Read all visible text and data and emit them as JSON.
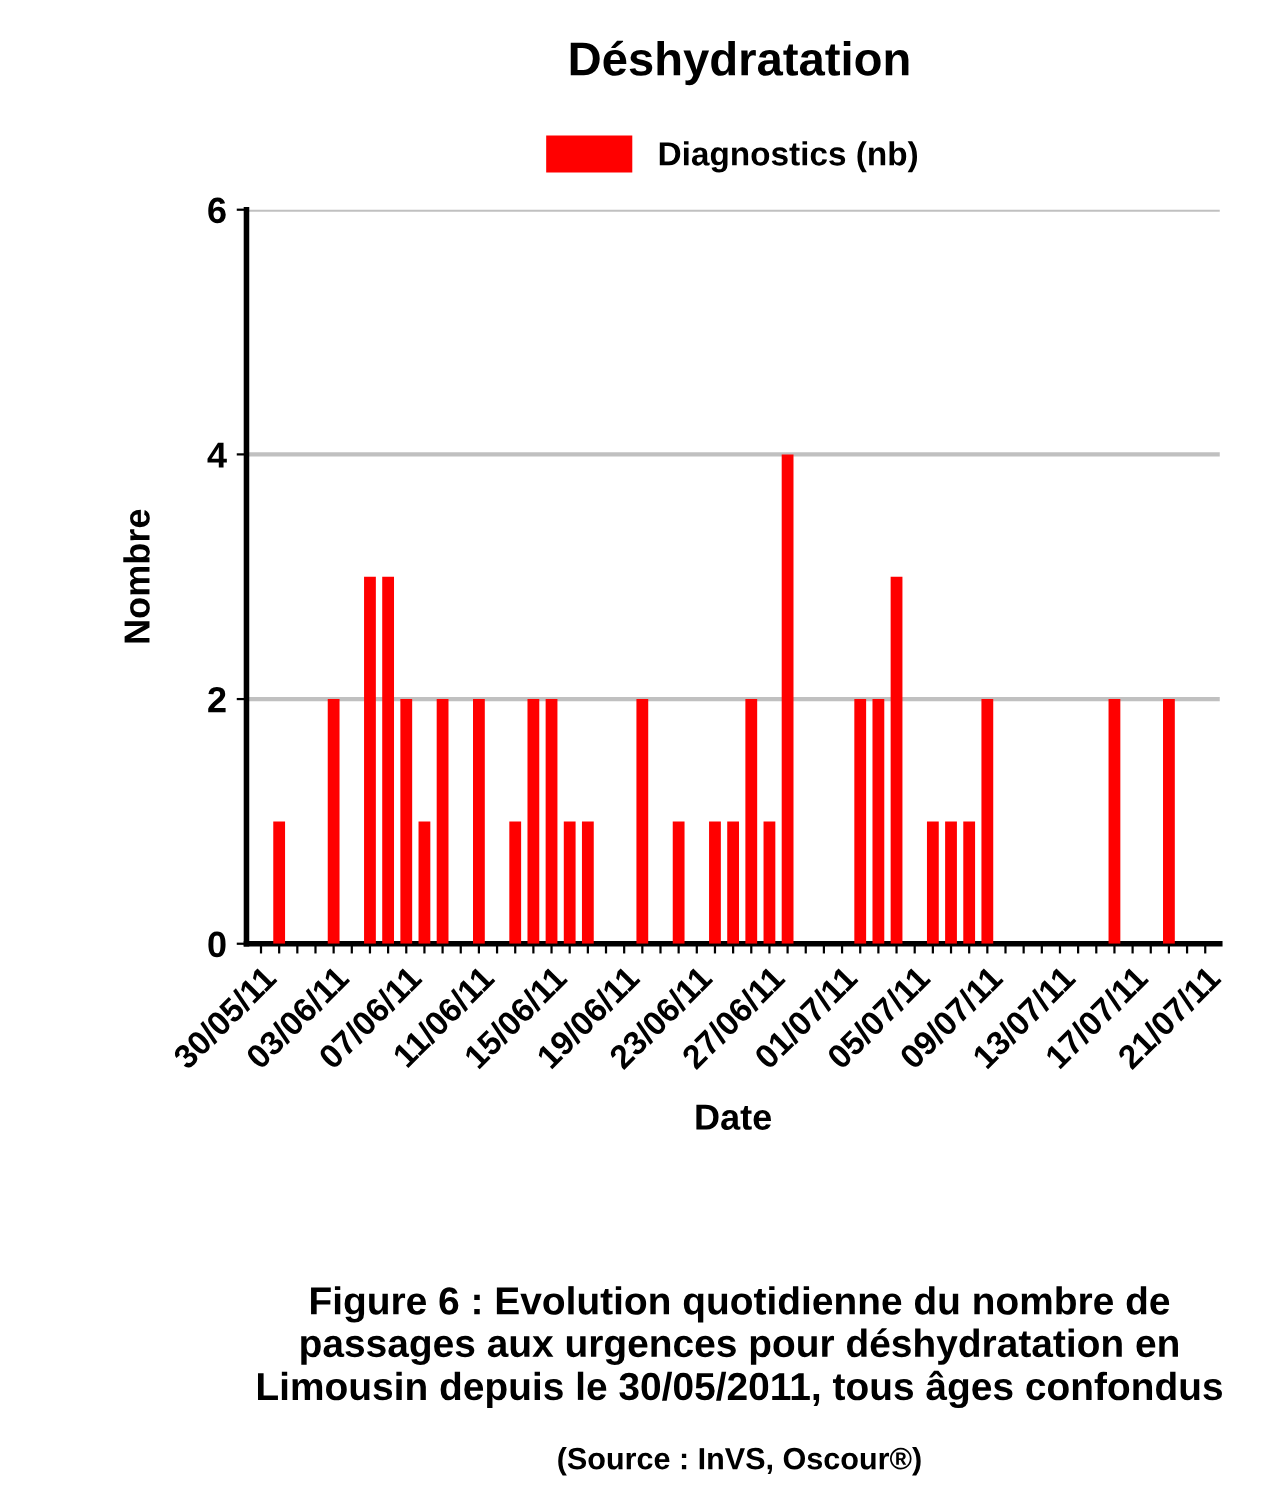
{
  "chart_data": {
    "type": "bar",
    "title": "Déshydratation",
    "categories": [
      "30/05/11",
      null,
      null,
      null,
      "03/06/11",
      null,
      null,
      null,
      "07/06/11",
      null,
      null,
      null,
      "11/06/11",
      null,
      null,
      null,
      "15/06/11",
      null,
      null,
      null,
      "19/06/11",
      null,
      null,
      null,
      "23/06/11",
      null,
      null,
      null,
      "27/06/11",
      null,
      null,
      null,
      "01/07/11",
      null,
      null,
      null,
      "05/07/11",
      null,
      null,
      null,
      "09/07/11",
      null,
      null,
      null,
      "13/07/11",
      null,
      null,
      null,
      "17/07/11",
      null,
      null,
      null,
      "21/07/11"
    ],
    "series": [
      {
        "name": "Diagnostics (nb)",
        "color": "#ff0000",
        "values": [
          0,
          1,
          0,
          0,
          2,
          0,
          3,
          3,
          2,
          1,
          2,
          0,
          2,
          0,
          1,
          2,
          2,
          1,
          1,
          0,
          0,
          2,
          0,
          1,
          0,
          1,
          1,
          2,
          1,
          4,
          0,
          0,
          0,
          2,
          2,
          3,
          0,
          1,
          1,
          1,
          2,
          0,
          0,
          0,
          0,
          0,
          0,
          2,
          0,
          0,
          2,
          0,
          0
        ]
      }
    ],
    "xlabel": "Date",
    "ylabel": "Nombre",
    "ylim": [
      0,
      6
    ],
    "yticks": [
      0,
      2,
      4,
      6
    ],
    "grid": "y",
    "legend": "top",
    "annotations": [
      "Figure 6 : Evolution quotidienne du nombre de passages aux urgences pour déshydratation en Limousin depuis le 30/05/2011, tous âges confondus",
      "(Source : InVS, Oscour®)"
    ]
  }
}
